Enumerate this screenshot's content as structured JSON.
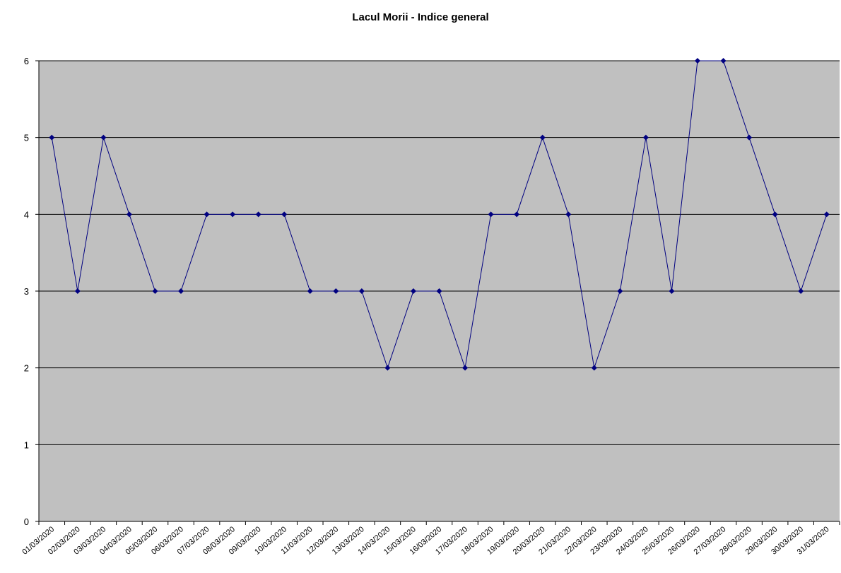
{
  "chart_data": {
    "type": "line",
    "title": "Lacul Morii - Indice general",
    "categories": [
      "01/03/2020",
      "02/03/2020",
      "03/03/2020",
      "04/03/2020",
      "05/03/2020",
      "06/03/2020",
      "07/03/2020",
      "08/03/2020",
      "09/03/2020",
      "10/03/2020",
      "11/03/2020",
      "12/03/2020",
      "13/03/2020",
      "14/03/2020",
      "15/03/2020",
      "16/03/2020",
      "17/03/2020",
      "18/03/2020",
      "19/03/2020",
      "20/03/2020",
      "21/03/2020",
      "22/03/2020",
      "23/03/2020",
      "24/03/2020",
      "25/03/2020",
      "26/03/2020",
      "27/03/2020",
      "28/03/2020",
      "29/03/2020",
      "30/03/2020",
      "31/03/2020"
    ],
    "values": [
      5,
      3,
      5,
      4,
      3,
      3,
      4,
      4,
      4,
      4,
      3,
      3,
      3,
      2,
      3,
      3,
      2,
      4,
      4,
      5,
      4,
      2,
      3,
      5,
      3,
      6,
      6,
      5,
      4,
      3,
      4
    ],
    "color": "#000080",
    "background": "#c0c0c0",
    "ylim": [
      0,
      6
    ],
    "yticks": [
      0,
      1,
      2,
      3,
      4,
      5,
      6
    ],
    "grid": true
  }
}
